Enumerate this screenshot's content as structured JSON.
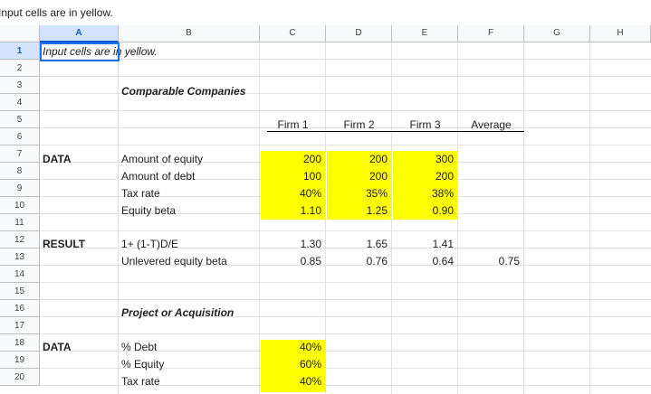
{
  "formula_bar": {
    "content": "Input cells are in yellow."
  },
  "columns": [
    "A",
    "B",
    "C",
    "D",
    "E",
    "F",
    "G",
    "H"
  ],
  "rows": [
    "1",
    "2",
    "3",
    "4",
    "5",
    "6",
    "7",
    "8",
    "9",
    "10",
    "11",
    "12",
    "13",
    "14",
    "15",
    "16",
    "17",
    "18",
    "19",
    "20"
  ],
  "sheet": {
    "a1": "Input cells are in yellow.",
    "section1_title": "Comparable Companies",
    "headers": [
      "Firm 1",
      "Firm 2",
      "Firm 3",
      "Average"
    ],
    "data_label": "DATA",
    "data_rows": [
      {
        "label": "Amount of equity",
        "values": [
          "200",
          "200",
          "300"
        ]
      },
      {
        "label": "Amount of debt",
        "values": [
          "100",
          "200",
          "200"
        ]
      },
      {
        "label": "Tax rate",
        "values": [
          "40%",
          "35%",
          "38%"
        ]
      },
      {
        "label": "Equity beta",
        "values": [
          "1.10",
          "1.25",
          "0.90"
        ]
      }
    ],
    "result_label": "RESULT",
    "result_rows": [
      {
        "label": "1+ (1-T)D/E",
        "values": [
          "1.30",
          "1.65",
          "1.41"
        ],
        "average": ""
      },
      {
        "label": "Unlevered equity beta",
        "values": [
          "0.85",
          "0.76",
          "0.64"
        ],
        "average": "0.75"
      }
    ],
    "section2_title": "Project or Acquisition",
    "data2_label": "DATA",
    "data2_rows": [
      {
        "label": "% Debt",
        "value": "40%"
      },
      {
        "label": "% Equity",
        "value": "60%"
      },
      {
        "label": "Tax rate",
        "value": "40%"
      }
    ]
  },
  "colors": {
    "input_fill": "#ffff00",
    "selection": "#1a73e8"
  }
}
